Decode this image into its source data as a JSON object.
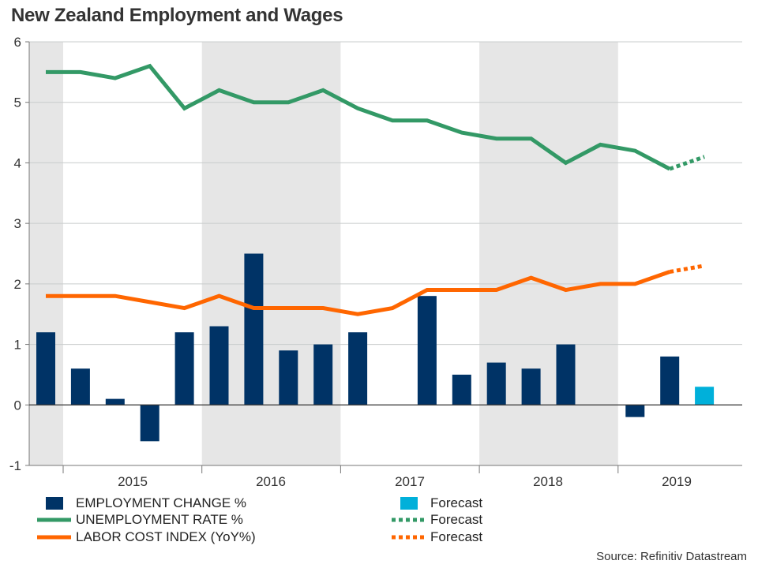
{
  "title": "New Zealand Employment and Wages",
  "source": "Source: Refinitiv Datastream",
  "colors": {
    "employment": "#003366",
    "employment_forecast": "#00B0DA",
    "unemployment": "#339966",
    "labor_cost": "#FF6600",
    "band": "#E6E6E6"
  },
  "chart_data": {
    "type": "bar+line",
    "title": "New Zealand Employment and Wages",
    "x_periods": [
      "2014Q4",
      "2015Q1",
      "2015Q2",
      "2015Q3",
      "2015Q4",
      "2016Q1",
      "2016Q2",
      "2016Q3",
      "2016Q4",
      "2017Q1",
      "2017Q2",
      "2017Q3",
      "2017Q4",
      "2018Q1",
      "2018Q2",
      "2018Q3",
      "2018Q4",
      "2019Q1",
      "2019Q2",
      "2019Q3"
    ],
    "x_tick_labels": [
      "2015",
      "2016",
      "2017",
      "2018",
      "2019"
    ],
    "y_ticks": [
      "-1",
      "0",
      "1",
      "2",
      "3",
      "4",
      "5",
      "6"
    ],
    "ylim": [
      -1,
      6
    ],
    "grid": true,
    "legend_position": "bottom",
    "series": [
      {
        "name": "EMPLOYMENT CHANGE %",
        "kind": "bar",
        "values": [
          1.2,
          0.6,
          0.1,
          -0.6,
          1.2,
          1.3,
          2.5,
          0.9,
          1.0,
          1.2,
          0,
          1.8,
          0.5,
          0.7,
          0.6,
          1.0,
          0,
          -0.2,
          0.8,
          null
        ]
      },
      {
        "name": "Forecast",
        "kind": "bar",
        "values": [
          null,
          null,
          null,
          null,
          null,
          null,
          null,
          null,
          null,
          null,
          null,
          null,
          null,
          null,
          null,
          null,
          null,
          null,
          null,
          0.3
        ]
      },
      {
        "name": "UNEMPLOYMENT RATE %",
        "kind": "line",
        "values": [
          5.5,
          5.5,
          5.4,
          5.6,
          4.9,
          5.2,
          5.0,
          5.0,
          5.2,
          4.9,
          4.7,
          4.7,
          4.5,
          4.4,
          4.4,
          4.0,
          4.3,
          4.2,
          3.9,
          null
        ]
      },
      {
        "name": "Forecast",
        "kind": "dotted-line",
        "values": [
          null,
          null,
          null,
          null,
          null,
          null,
          null,
          null,
          null,
          null,
          null,
          null,
          null,
          null,
          null,
          null,
          null,
          null,
          3.9,
          4.1
        ]
      },
      {
        "name": "LABOR COST INDEX (YoY%)",
        "kind": "line",
        "values": [
          1.8,
          1.8,
          1.8,
          1.7,
          1.6,
          1.8,
          1.6,
          1.6,
          1.6,
          1.5,
          1.6,
          1.9,
          1.9,
          1.9,
          2.1,
          1.9,
          2.0,
          2.0,
          2.2,
          null
        ]
      },
      {
        "name": "Forecast",
        "kind": "dotted-line",
        "values": [
          null,
          null,
          null,
          null,
          null,
          null,
          null,
          null,
          null,
          null,
          null,
          null,
          null,
          null,
          null,
          null,
          null,
          null,
          2.2,
          2.3
        ]
      }
    ]
  },
  "legend": [
    {
      "label": "EMPLOYMENT CHANGE %"
    },
    {
      "label": "Forecast"
    },
    {
      "label": "UNEMPLOYMENT RATE %"
    },
    {
      "label": "Forecast"
    },
    {
      "label": "LABOR COST INDEX (YoY%)"
    },
    {
      "label": "Forecast"
    }
  ]
}
